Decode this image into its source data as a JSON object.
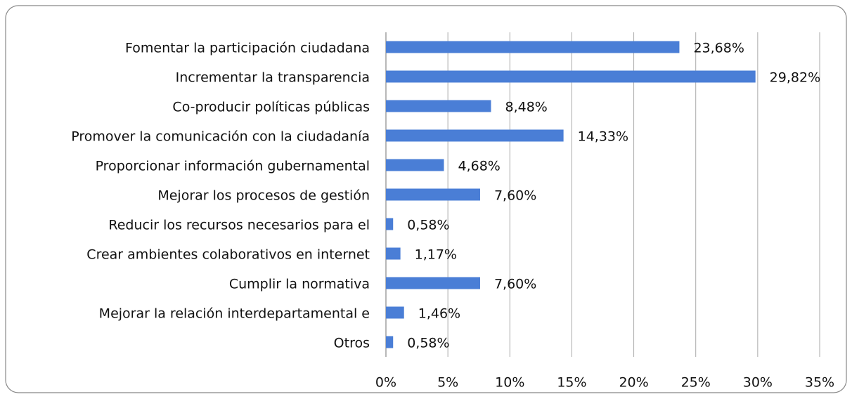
{
  "chart_data": {
    "type": "bar",
    "orientation": "horizontal",
    "categories": [
      "Fomentar la participación ciudadana",
      "Incrementar la transparencia",
      "Co-producir políticas públicas",
      "Promover la comunicación con la ciudadanía",
      "Proporcionar información gubernamental",
      "Mejorar los procesos de gestión",
      "Reducir los recursos necesarios para el",
      "Crear ambientes colaborativos en internet",
      "Cumplir la normativa",
      "Mejorar la relación interdepartamental e",
      "Otros"
    ],
    "values": [
      23.68,
      29.82,
      8.48,
      14.33,
      4.68,
      7.6,
      0.58,
      1.17,
      7.6,
      1.46,
      0.58
    ],
    "value_labels": [
      "23,68%",
      "29,82%",
      "8,48%",
      "14,33%",
      "4,68%",
      "7,60%",
      "0,58%",
      "1,17%",
      "7,60%",
      "1,46%",
      "0,58%"
    ],
    "color": "#4a7ed6",
    "xlim": [
      0,
      35
    ],
    "xticks": [
      {
        "value": 0,
        "label": "0%"
      },
      {
        "value": 5,
        "label": "5%"
      },
      {
        "value": 10,
        "label": "10%"
      },
      {
        "value": 15,
        "label": "15%"
      },
      {
        "value": 20,
        "label": "20%"
      },
      {
        "value": 25,
        "label": "25%"
      },
      {
        "value": 30,
        "label": "30%"
      },
      {
        "value": 35,
        "label": "35%"
      }
    ],
    "grid": true
  }
}
